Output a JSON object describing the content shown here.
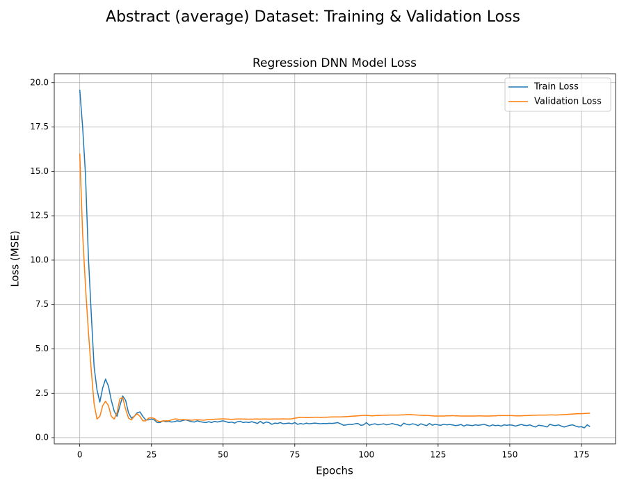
{
  "chart_data": {
    "type": "line",
    "suptitle": "Abstract (average) Dataset: Training & Validation Loss",
    "title": "Regression DNN Model Loss",
    "x_label": "Epochs",
    "y_label": "Loss (MSE)",
    "x": [
      0,
      1,
      2,
      3,
      4,
      5,
      6,
      7,
      8,
      9,
      10,
      11,
      12,
      13,
      14,
      15,
      16,
      17,
      18,
      19,
      20,
      21,
      22,
      23,
      24,
      25,
      26,
      27,
      28,
      29,
      30,
      31,
      32,
      33,
      34,
      35,
      36,
      37,
      38,
      39,
      40,
      41,
      42,
      43,
      44,
      45,
      46,
      47,
      48,
      49,
      50,
      51,
      52,
      53,
      54,
      55,
      56,
      57,
      58,
      59,
      60,
      61,
      62,
      63,
      64,
      65,
      66,
      67,
      68,
      69,
      70,
      71,
      72,
      73,
      74,
      75,
      76,
      77,
      78,
      79,
      80,
      81,
      82,
      83,
      84,
      85,
      86,
      87,
      88,
      89,
      90,
      91,
      92,
      93,
      94,
      95,
      96,
      97,
      98,
      99,
      100,
      101,
      102,
      103,
      104,
      105,
      106,
      107,
      108,
      109,
      110,
      111,
      112,
      113,
      114,
      115,
      116,
      117,
      118,
      119,
      120,
      121,
      122,
      123,
      124,
      125,
      126,
      127,
      128,
      129,
      130,
      131,
      132,
      133,
      134,
      135,
      136,
      137,
      138,
      139,
      140,
      141,
      142,
      143,
      144,
      145,
      146,
      147,
      148,
      149,
      150,
      151,
      152,
      153,
      154,
      155,
      156,
      157,
      158,
      159,
      160,
      161,
      162,
      163,
      164,
      165,
      166,
      167,
      168,
      169,
      170,
      171,
      172,
      173,
      174,
      175,
      176,
      177,
      178
    ],
    "series": [
      {
        "name": "Train Loss",
        "color": "#1f77b4",
        "values": [
          19.6,
          17.5,
          14.8,
          10.2,
          7.0,
          4.0,
          2.7,
          2.0,
          2.8,
          3.3,
          2.9,
          2.1,
          1.5,
          1.2,
          1.8,
          2.35,
          2.1,
          1.4,
          1.1,
          1.2,
          1.4,
          1.45,
          1.2,
          1.0,
          1.0,
          1.05,
          1.0,
          0.85,
          0.85,
          0.95,
          0.9,
          0.92,
          0.88,
          0.9,
          0.95,
          0.92,
          0.97,
          1.0,
          0.95,
          0.9,
          0.88,
          0.95,
          0.9,
          0.87,
          0.85,
          0.9,
          0.85,
          0.92,
          0.88,
          0.92,
          0.95,
          0.9,
          0.85,
          0.88,
          0.82,
          0.9,
          0.92,
          0.85,
          0.88,
          0.85,
          0.9,
          0.85,
          0.8,
          0.92,
          0.8,
          0.88,
          0.85,
          0.75,
          0.82,
          0.8,
          0.85,
          0.78,
          0.8,
          0.82,
          0.78,
          0.85,
          0.75,
          0.8,
          0.76,
          0.82,
          0.78,
          0.8,
          0.82,
          0.8,
          0.78,
          0.8,
          0.79,
          0.81,
          0.8,
          0.82,
          0.85,
          0.78,
          0.7,
          0.72,
          0.75,
          0.74,
          0.78,
          0.8,
          0.7,
          0.72,
          0.85,
          0.7,
          0.75,
          0.78,
          0.72,
          0.75,
          0.78,
          0.72,
          0.75,
          0.8,
          0.74,
          0.72,
          0.65,
          0.82,
          0.75,
          0.72,
          0.78,
          0.75,
          0.68,
          0.78,
          0.72,
          0.68,
          0.8,
          0.7,
          0.75,
          0.72,
          0.7,
          0.75,
          0.72,
          0.74,
          0.72,
          0.68,
          0.7,
          0.74,
          0.65,
          0.72,
          0.7,
          0.68,
          0.72,
          0.7,
          0.72,
          0.75,
          0.7,
          0.65,
          0.72,
          0.68,
          0.7,
          0.65,
          0.72,
          0.7,
          0.72,
          0.7,
          0.65,
          0.7,
          0.74,
          0.7,
          0.68,
          0.72,
          0.65,
          0.6,
          0.7,
          0.68,
          0.65,
          0.6,
          0.75,
          0.7,
          0.68,
          0.72,
          0.65,
          0.6,
          0.65,
          0.7,
          0.72,
          0.65,
          0.6,
          0.62,
          0.55,
          0.72,
          0.62
        ]
      },
      {
        "name": "Validation Loss",
        "color": "#ff7f0e",
        "values": [
          16.0,
          11.5,
          8.5,
          6.0,
          3.8,
          1.9,
          1.05,
          1.2,
          1.8,
          2.05,
          1.8,
          1.2,
          1.05,
          1.4,
          2.2,
          2.25,
          1.6,
          1.1,
          1.0,
          1.2,
          1.35,
          1.2,
          0.95,
          0.95,
          1.1,
          1.12,
          1.08,
          0.95,
          0.9,
          0.95,
          0.95,
          0.95,
          1.0,
          1.05,
          1.05,
          1.0,
          1.02,
          1.0,
          1.0,
          0.98,
          1.0,
          1.0,
          1.0,
          0.98,
          1.0,
          1.02,
          1.02,
          1.04,
          1.04,
          1.05,
          1.06,
          1.05,
          1.04,
          1.03,
          1.04,
          1.05,
          1.05,
          1.05,
          1.04,
          1.04,
          1.04,
          1.05,
          1.05,
          1.04,
          1.05,
          1.05,
          1.04,
          1.05,
          1.05,
          1.05,
          1.05,
          1.06,
          1.05,
          1.05,
          1.06,
          1.1,
          1.12,
          1.14,
          1.14,
          1.13,
          1.13,
          1.14,
          1.15,
          1.15,
          1.14,
          1.15,
          1.15,
          1.16,
          1.17,
          1.17,
          1.17,
          1.17,
          1.18,
          1.18,
          1.2,
          1.21,
          1.22,
          1.23,
          1.24,
          1.25,
          1.25,
          1.24,
          1.23,
          1.24,
          1.25,
          1.25,
          1.26,
          1.26,
          1.27,
          1.27,
          1.27,
          1.27,
          1.28,
          1.28,
          1.3,
          1.3,
          1.29,
          1.28,
          1.27,
          1.26,
          1.25,
          1.25,
          1.24,
          1.23,
          1.22,
          1.22,
          1.22,
          1.22,
          1.23,
          1.23,
          1.24,
          1.23,
          1.23,
          1.22,
          1.22,
          1.22,
          1.22,
          1.22,
          1.22,
          1.23,
          1.23,
          1.22,
          1.22,
          1.22,
          1.23,
          1.23,
          1.24,
          1.24,
          1.24,
          1.24,
          1.24,
          1.24,
          1.23,
          1.23,
          1.23,
          1.24,
          1.24,
          1.25,
          1.26,
          1.26,
          1.27,
          1.27,
          1.27,
          1.27,
          1.28,
          1.28,
          1.27,
          1.28,
          1.29,
          1.3,
          1.31,
          1.32,
          1.33,
          1.34,
          1.35,
          1.35,
          1.36,
          1.37,
          1.38
        ]
      }
    ],
    "xlim": [
      -8.9,
      186.9
    ],
    "ylim": [
      -0.35,
      20.5
    ],
    "xticks": [
      0,
      25,
      50,
      75,
      100,
      125,
      150,
      175
    ],
    "yticks": [
      {
        "value": 0,
        "label": "0.0"
      },
      {
        "value": 2.5,
        "label": "2.5"
      },
      {
        "value": 5,
        "label": "5.0"
      },
      {
        "value": 7.5,
        "label": "7.5"
      },
      {
        "value": 10,
        "label": "10.0"
      },
      {
        "value": 12.5,
        "label": "12.5"
      },
      {
        "value": 15,
        "label": "15.0"
      },
      {
        "value": 17.5,
        "label": "17.5"
      },
      {
        "value": 20,
        "label": "20.0"
      }
    ],
    "grid": true,
    "legend": "upper right"
  }
}
